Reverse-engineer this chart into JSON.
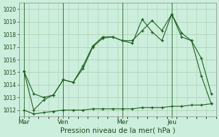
{
  "title": "Pression niveau de la mer( hPa )",
  "bg_color": "#cceedd",
  "grid_color": "#aaccaa",
  "line_color": "#1a5c1a",
  "ylim": [
    1011.5,
    1020.5
  ],
  "yticks": [
    1012,
    1013,
    1014,
    1015,
    1016,
    1017,
    1018,
    1019,
    1020
  ],
  "xtick_labels": [
    "Mar",
    "Ven",
    "Mer",
    "Jeu"
  ],
  "xtick_positions": [
    0,
    4,
    10,
    15
  ],
  "vline_positions": [
    0,
    4,
    10,
    15
  ],
  "num_points": 20,
  "series1_x": [
    0,
    1,
    2,
    3,
    4,
    5,
    6,
    7,
    8,
    9,
    10,
    11,
    12,
    13,
    14,
    15,
    16,
    17,
    18,
    19
  ],
  "series1_y": [
    1015.1,
    1012.0,
    1012.8,
    1013.2,
    1014.4,
    1014.2,
    1015.3,
    1017.0,
    1017.7,
    1017.8,
    1017.5,
    1017.3,
    1019.2,
    1018.2,
    1017.5,
    1019.6,
    1018.1,
    1017.5,
    1016.1,
    1013.3
  ],
  "series2_x": [
    0,
    1,
    2,
    3,
    4,
    5,
    6,
    7,
    8,
    9,
    10,
    11,
    12,
    13,
    14,
    15,
    16,
    17,
    18,
    19
  ],
  "series2_y": [
    1015.1,
    1013.3,
    1013.0,
    1013.2,
    1014.4,
    1014.2,
    1015.5,
    1017.1,
    1017.8,
    1017.8,
    1017.5,
    1017.5,
    1018.3,
    1019.1,
    1018.3,
    1019.6,
    1017.8,
    1017.5,
    1014.7,
    1012.5
  ],
  "series3_x": [
    0,
    1,
    2,
    3,
    4,
    5,
    6,
    7,
    8,
    9,
    10,
    11,
    12,
    13,
    14,
    15,
    16,
    17,
    18,
    19
  ],
  "series3_y": [
    1012.0,
    1011.7,
    1011.8,
    1011.9,
    1012.0,
    1012.0,
    1012.0,
    1012.1,
    1012.1,
    1012.1,
    1012.1,
    1012.1,
    1012.2,
    1012.2,
    1012.2,
    1012.3,
    1012.3,
    1012.4,
    1012.4,
    1012.5
  ]
}
